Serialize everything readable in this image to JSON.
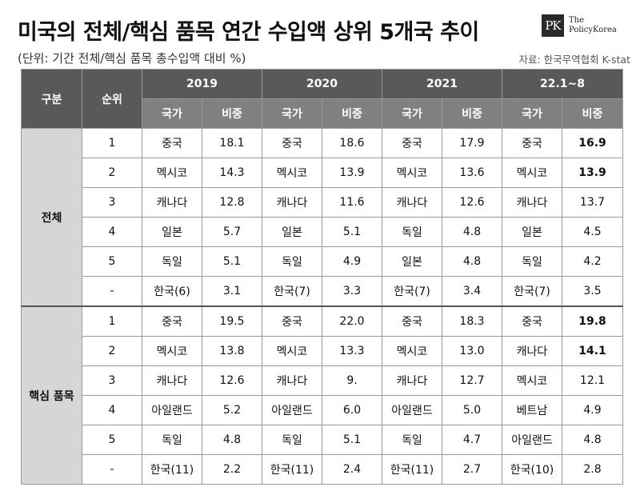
{
  "title": "미국의 전체/핵심 품목 연간 수입액 상위 5개국 추이",
  "subtitle": "(단위: 기간 전체/핵심 품목 총수입액 대비 %)",
  "source": "자료: 한국무역협회 K-stat",
  "logo": {
    "mark": "PK",
    "line1": "The",
    "line2": "PolicyKorea"
  },
  "table": {
    "col_group": "구분",
    "col_rank": "순위",
    "periods": [
      "2019",
      "2020",
      "2021",
      "22.1~8"
    ],
    "sub_country": "국가",
    "sub_share": "비중",
    "sections": [
      {
        "name": "전체",
        "rows": [
          {
            "rank": "1",
            "cells": [
              [
                "중국",
                "18.1"
              ],
              [
                "중국",
                "18.6"
              ],
              [
                "중국",
                "17.9"
              ],
              [
                "중국",
                "16.9"
              ]
            ]
          },
          {
            "rank": "2",
            "cells": [
              [
                "멕시코",
                "14.3"
              ],
              [
                "멕시코",
                "13.9"
              ],
              [
                "멕시코",
                "13.6"
              ],
              [
                "멕시코",
                "13.9"
              ]
            ]
          },
          {
            "rank": "3",
            "cells": [
              [
                "캐나다",
                "12.8"
              ],
              [
                "캐나다",
                "11.6"
              ],
              [
                "캐나다",
                "12.6"
              ],
              [
                "캐나다",
                "13.7"
              ]
            ]
          },
          {
            "rank": "4",
            "cells": [
              [
                "일본",
                "5.7"
              ],
              [
                "일본",
                "5.1"
              ],
              [
                "독일",
                "4.8"
              ],
              [
                "일본",
                "4.5"
              ]
            ]
          },
          {
            "rank": "5",
            "cells": [
              [
                "독일",
                "5.1"
              ],
              [
                "독일",
                "4.9"
              ],
              [
                "일본",
                "4.8"
              ],
              [
                "독일",
                "4.2"
              ]
            ]
          },
          {
            "rank": "-",
            "cells": [
              [
                "한국(6)",
                "3.1"
              ],
              [
                "한국(7)",
                "3.3"
              ],
              [
                "한국(7)",
                "3.4"
              ],
              [
                "한국(7)",
                "3.5"
              ]
            ]
          }
        ]
      },
      {
        "name": "핵심 품목",
        "rows": [
          {
            "rank": "1",
            "cells": [
              [
                "중국",
                "19.5"
              ],
              [
                "중국",
                "22.0"
              ],
              [
                "중국",
                "18.3"
              ],
              [
                "중국",
                "19.8"
              ]
            ]
          },
          {
            "rank": "2",
            "cells": [
              [
                "멕시코",
                "13.8"
              ],
              [
                "멕시코",
                "13.3"
              ],
              [
                "멕시코",
                "13.0"
              ],
              [
                "캐나다",
                "14.1"
              ]
            ]
          },
          {
            "rank": "3",
            "cells": [
              [
                "캐나다",
                "12.6"
              ],
              [
                "캐나다",
                "9."
              ],
              [
                "캐나다",
                "12.7"
              ],
              [
                "멕시코",
                "12.1"
              ]
            ]
          },
          {
            "rank": "4",
            "cells": [
              [
                "아일랜드",
                "5.2"
              ],
              [
                "아일랜드",
                "6.0"
              ],
              [
                "아일랜드",
                "5.0"
              ],
              [
                "베트남",
                "4.9"
              ]
            ]
          },
          {
            "rank": "5",
            "cells": [
              [
                "독일",
                "4.8"
              ],
              [
                "독일",
                "5.1"
              ],
              [
                "독일",
                "4.7"
              ],
              [
                "아일랜드",
                "4.8"
              ]
            ]
          },
          {
            "rank": "-",
            "cells": [
              [
                "한국(11)",
                "2.2"
              ],
              [
                "한국(11)",
                "2.4"
              ],
              [
                "한국(11)",
                "2.7"
              ],
              [
                "한국(10)",
                "2.8"
              ]
            ]
          }
        ]
      }
    ]
  }
}
